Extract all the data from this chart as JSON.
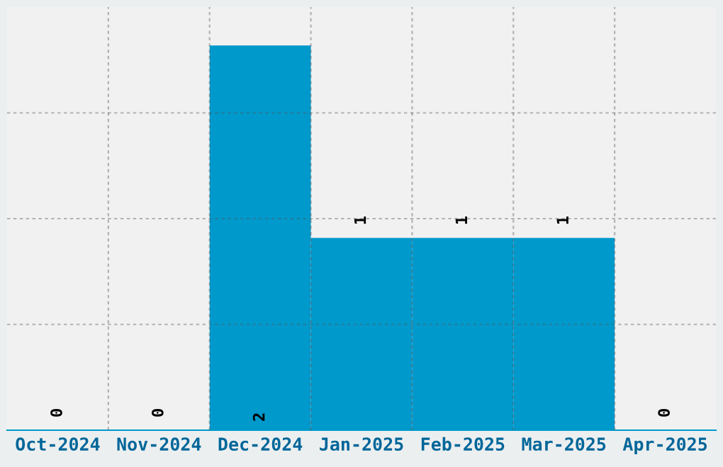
{
  "chart_data": {
    "type": "bar",
    "categories": [
      "Oct-2024",
      "Nov-2024",
      "Dec-2024",
      "Jan-2025",
      "Feb-2025",
      "Mar-2025",
      "Apr-2025"
    ],
    "values": [
      0,
      0,
      2,
      1,
      1,
      1,
      0
    ],
    "color": "#0099cc",
    "ylim": [
      0,
      2.2
    ],
    "yticks": [
      {
        "value": 0.55,
        "label": null
      },
      {
        "value": 1.1,
        "label": null
      },
      {
        "value": 1.65,
        "label": null
      }
    ],
    "tick_labels": "x",
    "grid": true,
    "data_labels": true
  }
}
